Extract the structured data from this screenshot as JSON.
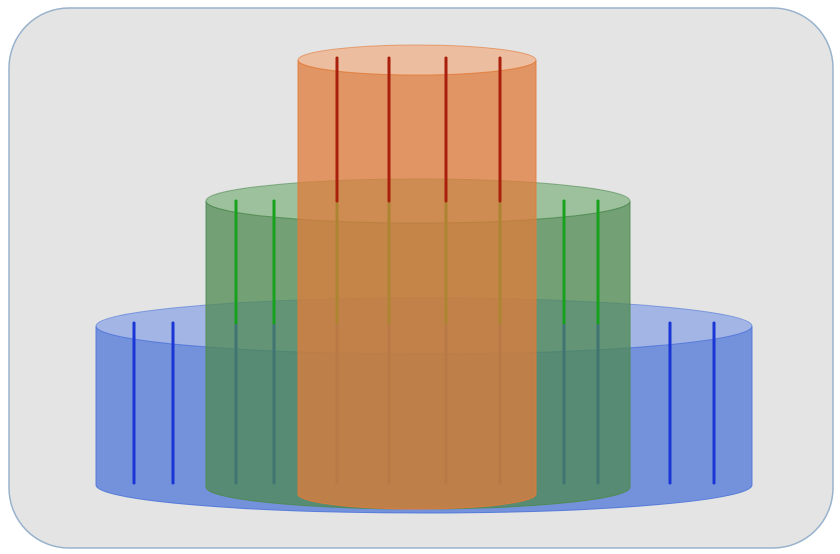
{
  "figure": {
    "panel_color": "#e4e4e4",
    "panel_border_color": "#98b2cc",
    "cylinders": [
      {
        "id": "bottom",
        "fill": "#4f75d8",
        "top_fill": "#8ea6e4",
        "rod_color": "#1a35d6"
      },
      {
        "id": "middle",
        "fill": "#4e8a50",
        "top_fill": "#86b486",
        "rod_color": "#16a21c"
      },
      {
        "id": "top",
        "fill": "#e07b3a",
        "top_fill": "#f0b08a",
        "rod_color": "#a8200c"
      }
    ]
  }
}
